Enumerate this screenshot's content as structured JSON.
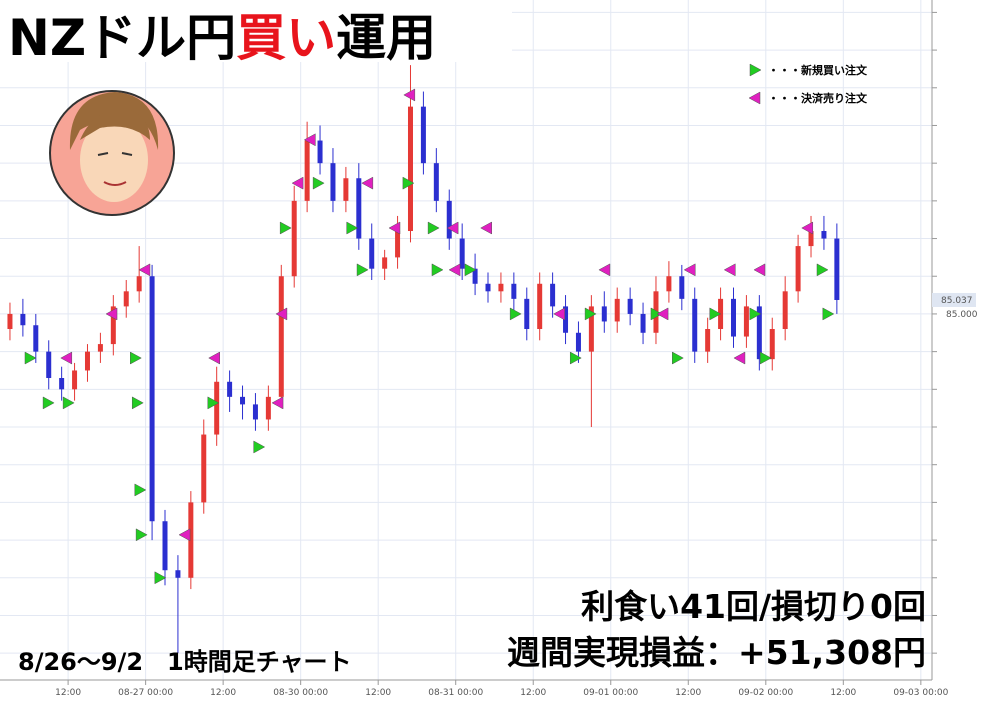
{
  "chart_data": {
    "type": "candlestick",
    "title_parts": [
      "NZドル円",
      "買い",
      "運用"
    ],
    "title_colors": [
      "#000000",
      "#e8141c",
      "#000000"
    ],
    "period_label": "8/26～9/2　1時間足チャート",
    "summary_lines": [
      "利食い41回/損切り0回",
      "週間実現損益：+51,308円"
    ],
    "legend": [
      {
        "name": "・・・新規買い注文",
        "color": "#22cc22"
      },
      {
        "name": "・・・決済売り注文",
        "color": "#e020c0"
      }
    ],
    "up_color": "#e53935",
    "down_color": "#2b2fd0",
    "x": [
      0,
      2,
      4,
      6,
      8,
      10,
      12,
      14,
      16,
      18,
      20,
      22,
      24,
      26,
      28,
      30,
      32,
      34,
      36,
      38,
      40,
      42,
      44,
      46,
      48,
      50,
      52,
      54,
      56,
      58,
      60,
      62,
      64,
      66,
      68,
      70,
      72,
      74,
      76,
      78,
      80,
      82,
      84,
      86,
      88,
      90,
      92,
      94,
      96,
      98,
      100,
      102,
      104,
      106,
      108,
      110,
      112,
      114,
      116,
      118,
      120,
      122,
      124,
      126,
      128
    ],
    "open": [
      84.96,
      85.0,
      84.97,
      84.9,
      84.83,
      84.8,
      84.85,
      84.9,
      84.92,
      85.02,
      85.06,
      85.1,
      84.45,
      84.32,
      84.3,
      84.5,
      84.68,
      84.82,
      84.78,
      84.76,
      84.72,
      84.78,
      85.1,
      85.3,
      85.46,
      85.4,
      85.3,
      85.36,
      85.2,
      85.12,
      85.15,
      85.22,
      85.55,
      85.4,
      85.3,
      85.2,
      85.12,
      85.08,
      85.06,
      85.08,
      85.04,
      84.96,
      85.08,
      85.02,
      84.95,
      84.9,
      85.02,
      84.98,
      85.04,
      85.0,
      84.95,
      85.06,
      85.1,
      85.04,
      84.9,
      84.96,
      85.04,
      84.94,
      85.02,
      84.88,
      84.96,
      85.06,
      85.18,
      85.22,
      85.2
    ],
    "high": [
      85.03,
      85.04,
      85.0,
      84.93,
      84.86,
      84.87,
      84.92,
      84.95,
      85.05,
      85.09,
      85.18,
      85.13,
      84.48,
      84.36,
      84.53,
      84.72,
      84.86,
      84.85,
      84.81,
      84.79,
      84.81,
      85.13,
      85.34,
      85.51,
      85.5,
      85.44,
      85.39,
      85.4,
      85.24,
      85.17,
      85.26,
      85.66,
      85.59,
      85.44,
      85.33,
      85.24,
      85.16,
      85.11,
      85.11,
      85.11,
      85.07,
      85.11,
      85.11,
      85.05,
      84.98,
      85.05,
      85.06,
      85.07,
      85.07,
      85.03,
      85.1,
      85.14,
      85.13,
      85.07,
      84.99,
      85.07,
      85.07,
      85.05,
      85.05,
      84.99,
      85.1,
      85.21,
      85.26,
      85.26,
      85.24
    ],
    "low": [
      84.93,
      84.94,
      84.87,
      84.8,
      84.77,
      84.77,
      84.82,
      84.87,
      84.89,
      84.99,
      85.03,
      84.4,
      84.28,
      84.1,
      84.27,
      84.47,
      84.65,
      84.74,
      84.72,
      84.69,
      84.69,
      84.75,
      85.07,
      85.27,
      85.37,
      85.27,
      85.27,
      85.17,
      85.09,
      85.09,
      85.12,
      85.19,
      85.37,
      85.27,
      85.17,
      85.09,
      85.05,
      85.03,
      85.03,
      85.01,
      84.93,
      84.93,
      84.99,
      84.92,
      84.87,
      84.7,
      84.95,
      84.95,
      84.97,
      84.92,
      84.92,
      85.03,
      85.01,
      84.87,
      84.87,
      84.93,
      84.91,
      84.91,
      84.85,
      84.85,
      84.93,
      85.03,
      85.15,
      85.17,
      85.0
    ],
    "close": [
      85.0,
      84.97,
      84.9,
      84.83,
      84.8,
      84.85,
      84.9,
      84.92,
      85.02,
      85.06,
      85.1,
      84.45,
      84.32,
      84.3,
      84.5,
      84.68,
      84.82,
      84.78,
      84.76,
      84.72,
      84.78,
      85.1,
      85.3,
      85.46,
      85.4,
      85.3,
      85.36,
      85.2,
      85.12,
      85.15,
      85.22,
      85.55,
      85.4,
      85.3,
      85.2,
      85.12,
      85.08,
      85.06,
      85.08,
      85.04,
      84.96,
      85.08,
      85.02,
      84.95,
      84.9,
      85.02,
      84.98,
      85.04,
      85.0,
      84.95,
      85.06,
      85.1,
      85.04,
      84.9,
      84.96,
      85.04,
      84.94,
      85.02,
      84.88,
      84.96,
      85.06,
      85.18,
      85.22,
      85.2,
      85.037
    ],
    "buy_orders": {
      "x": [
        3.1,
        5.9,
        9,
        19.4,
        19.7,
        20.1,
        20.3,
        23.2,
        31.4,
        38.5,
        42.6,
        47.7,
        52.9,
        54.5,
        61.6,
        65.5,
        66.1,
        71.2,
        78.2,
        87.5,
        89.8,
        100,
        103.3,
        109.1,
        115.3,
        116.9,
        125.7,
        126.6
      ],
      "y": [
        84.883,
        84.764,
        84.764,
        84.883,
        84.764,
        84.533,
        84.414,
        84.3,
        84.764,
        84.647,
        85.228,
        85.347,
        85.228,
        85.117,
        85.347,
        85.228,
        85.117,
        85.117,
        85,
        84.883,
        85,
        85,
        84.883,
        85,
        85,
        84.883,
        85.117,
        85
      ]
    },
    "sell_orders": {
      "x": [
        8.8,
        15.8,
        20.9,
        27.1,
        31.7,
        41.5,
        42.1,
        44.6,
        46.5,
        55.4,
        59.6,
        61.9,
        68.6,
        68.9,
        73.8,
        85.1,
        92.1,
        101.1,
        105.3,
        111.5,
        113,
        116.1,
        123.5
      ],
      "y": [
        84.883,
        85,
        85.117,
        84.414,
        84.883,
        84.764,
        85,
        85.347,
        85.462,
        85.347,
        85.228,
        85.581,
        85.228,
        85.117,
        85.228,
        85,
        85.117,
        85,
        85.117,
        85.117,
        84.883,
        85.117,
        85.228
      ]
    },
    "xlim": [
      -1,
      142
    ],
    "xticks": [
      {
        "value": 9,
        "label": "12:00"
      },
      {
        "value": 21,
        "label": "08-27 00:00"
      },
      {
        "value": 33,
        "label": "12:00"
      },
      {
        "value": 45,
        "label": "08-30 00:00"
      },
      {
        "value": 57,
        "label": "12:00"
      },
      {
        "value": 69,
        "label": "08-31 00:00"
      },
      {
        "value": 81,
        "label": "12:00"
      },
      {
        "value": 93,
        "label": "09-01 00:00"
      },
      {
        "value": 105,
        "label": "12:00"
      },
      {
        "value": 117,
        "label": "09-02 00:00"
      },
      {
        "value": 129,
        "label": "12:00"
      },
      {
        "value": 141,
        "label": "09-03 00:00"
      }
    ],
    "ylim": [
      84.05,
      85.8
    ],
    "ygrid": [
      84.1,
      84.2,
      84.3,
      84.4,
      84.5,
      84.6,
      84.7,
      84.8,
      84.9,
      85.0,
      85.1,
      85.2,
      85.3,
      85.4,
      85.5,
      85.6,
      85.7,
      85.8
    ],
    "yticks": [
      {
        "value": 85,
        "label": "85.000"
      }
    ],
    "last_price": {
      "value": 85.037,
      "label": "85.037"
    },
    "grid": true
  }
}
